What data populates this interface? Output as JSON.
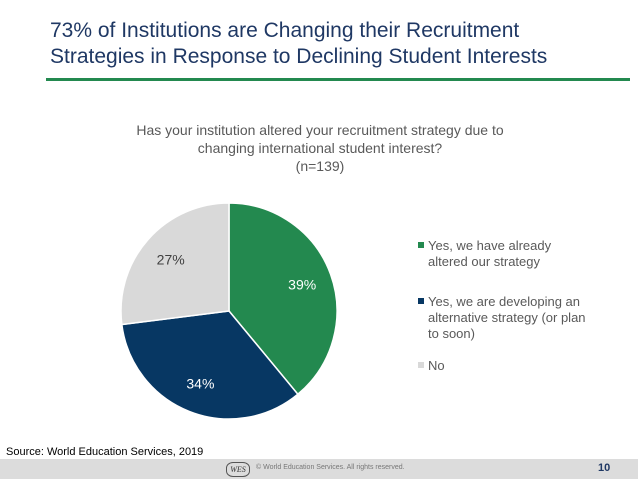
{
  "slide": {
    "title_line1": "73% of Institutions are Changing their Recruitment",
    "title_line2": "Strategies in Response to Declining Student Interests",
    "accent_color": "#23894f"
  },
  "chart_data": {
    "type": "pie",
    "title_lines": [
      "Has your institution altered your recruitment strategy due to",
      "changing international student interest?",
      "(n=139)"
    ],
    "categories": [
      "Yes, we have already altered our strategy",
      "Yes, we are developing an alternative strategy (or plan to soon)",
      "No"
    ],
    "legend_lines": [
      [
        "Yes, we have already",
        "altered our strategy"
      ],
      [
        "Yes, we are developing an",
        "alternative strategy (or plan",
        "to soon)"
      ],
      [
        "No"
      ]
    ],
    "values": [
      39,
      34,
      27
    ],
    "data_labels": [
      "39%",
      "34%",
      "27%"
    ],
    "colors": [
      "#23894f",
      "#073763",
      "#d9d9d9"
    ],
    "label_colors": [
      "#ffffff",
      "#ffffff",
      "#404040"
    ],
    "legend_position": "right"
  },
  "source": "Source: World Education Services, 2019",
  "footer": {
    "logo_text": "WES",
    "copyright": "© World Education Services. All rights reserved.",
    "page_number": "10"
  }
}
